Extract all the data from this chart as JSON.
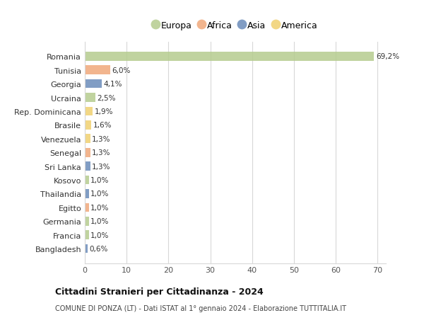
{
  "countries": [
    "Romania",
    "Tunisia",
    "Georgia",
    "Ucraina",
    "Rep. Dominicana",
    "Brasile",
    "Venezuela",
    "Senegal",
    "Sri Lanka",
    "Kosovo",
    "Thailandia",
    "Egitto",
    "Germania",
    "Francia",
    "Bangladesh"
  ],
  "values": [
    69.2,
    6.0,
    4.1,
    2.5,
    1.9,
    1.6,
    1.3,
    1.3,
    1.3,
    1.0,
    1.0,
    1.0,
    1.0,
    1.0,
    0.6
  ],
  "labels": [
    "69,2%",
    "6,0%",
    "4,1%",
    "2,5%",
    "1,9%",
    "1,6%",
    "1,3%",
    "1,3%",
    "1,3%",
    "1,0%",
    "1,0%",
    "1,0%",
    "1,0%",
    "1,0%",
    "0,6%"
  ],
  "regions": [
    "Europa",
    "Africa",
    "Asia",
    "Europa",
    "America",
    "America",
    "America",
    "Africa",
    "Asia",
    "Europa",
    "Asia",
    "Africa",
    "Europa",
    "Europa",
    "Asia"
  ],
  "region_colors": {
    "Europa": "#b5cc8e",
    "Africa": "#f0a87a",
    "Asia": "#6b8cba",
    "America": "#f0d070"
  },
  "legend_order": [
    "Europa",
    "Africa",
    "Asia",
    "America"
  ],
  "title": "Cittadini Stranieri per Cittadinanza - 2024",
  "subtitle": "COMUNE DI PONZA (LT) - Dati ISTAT al 1° gennaio 2024 - Elaborazione TUTTITALIA.IT",
  "xlim": [
    0,
    72
  ],
  "xticks": [
    0,
    10,
    20,
    30,
    40,
    50,
    60,
    70
  ],
  "background_color": "#ffffff",
  "grid_color": "#d8d8d8"
}
